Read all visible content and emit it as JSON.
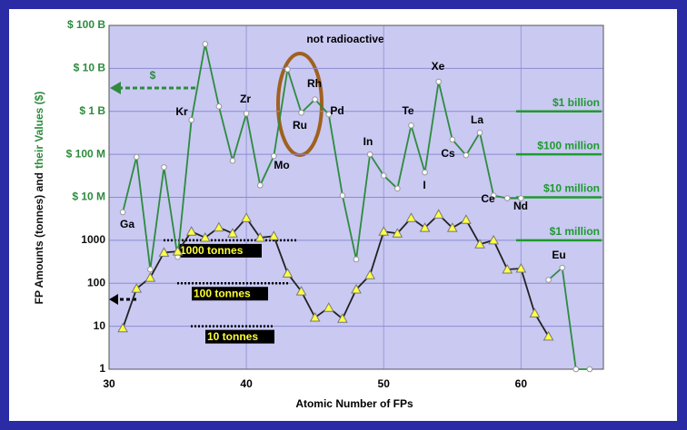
{
  "chart_data": {
    "type": "line",
    "xlabel": "Atomic Number of FPs",
    "ylabel": [
      "FP Amounts (tonnes) and",
      "their Values ($)"
    ],
    "xlim": [
      30,
      66
    ],
    "xticks": [
      30,
      40,
      50,
      60
    ],
    "ylim": [
      1,
      100000000
    ],
    "log_y": true,
    "grid": true,
    "yticks": [
      1,
      10,
      100,
      1000,
      {
        "value": 10000,
        "label": "$ 10 M"
      },
      {
        "value": 100000,
        "label": "$ 100 M"
      },
      {
        "value": 1000000,
        "label": "$ 1 B"
      },
      {
        "value": 10000000,
        "label": "$ 10 B"
      },
      {
        "value": 100000000,
        "label": "$ 100 B"
      }
    ],
    "series": [
      {
        "color": "#2e8b3e",
        "x": [
          31,
          32,
          33,
          34,
          35,
          36,
          37,
          38,
          39,
          40,
          41,
          42,
          43,
          44,
          45,
          46,
          47,
          48,
          49,
          50,
          51,
          52,
          53,
          54,
          55,
          56,
          57,
          58,
          59,
          60,
          61,
          62,
          63,
          64,
          65
        ],
        "values": [
          4500,
          87000,
          210,
          50000,
          410,
          630000,
          37000000,
          1300000,
          71000,
          890000,
          19000,
          91000,
          9500000,
          930000,
          1900000,
          850000,
          11000,
          360,
          100000,
          32000,
          16000,
          470000,
          38000,
          4900000,
          220000,
          95000,
          320000,
          11000,
          9500,
          9500,
          null,
          120,
          230,
          1,
          1
        ]
      },
      {
        "color": "#222222",
        "x": [
          31,
          32,
          33,
          34,
          35,
          36,
          37,
          38,
          39,
          40,
          41,
          42,
          43,
          44,
          45,
          46,
          47,
          48,
          49,
          50,
          51,
          52,
          53,
          54,
          55,
          56,
          57,
          58,
          59,
          60,
          61,
          62
        ],
        "values": [
          9,
          75,
          135,
          520,
          550,
          1600,
          1150,
          2000,
          1450,
          3300,
          1150,
          1250,
          170,
          65,
          16,
          27,
          15,
          72,
          155,
          1600,
          1450,
          3300,
          1950,
          4000,
          1950,
          3000,
          810,
          1000,
          210,
          220,
          20,
          5.8
        ]
      }
    ],
    "element_labels": [
      "Ga",
      "Kr",
      "Zr",
      "Mo",
      "Ru",
      "Rh",
      "Pd",
      "In",
      "Te",
      "I",
      "Xe",
      "Cs",
      "La",
      "Ce",
      "Nd",
      "Eu"
    ],
    "annotation": "not radioactive",
    "dollar_sign": "$",
    "value_lines": [
      {
        "label": "$1 billion",
        "value": 1000000
      },
      {
        "label": "$100 million",
        "value": 100000
      },
      {
        "label": "$10 million",
        "value": 10000
      },
      {
        "label": "$1 million",
        "value": 1000
      }
    ],
    "tonne_lines": [
      {
        "label": "1000 tonnes",
        "value": 1000
      },
      {
        "label": "100 tonnes",
        "value": 100
      },
      {
        "label": "10 tonnes",
        "value": 10
      }
    ]
  }
}
